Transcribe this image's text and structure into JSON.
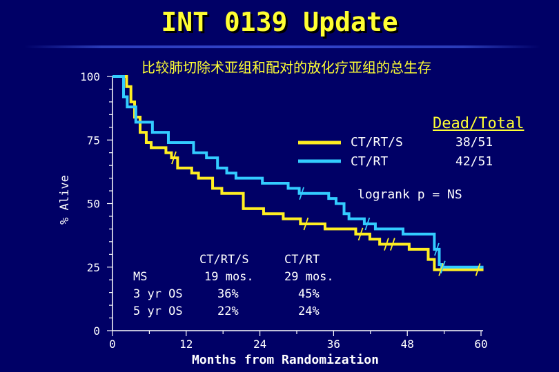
{
  "slide": {
    "title": "INT 0139 Update",
    "subtitle": "比较肺切除术亚组和配对的放化疗亚组的总生存"
  },
  "legend": {
    "header": "Dead/Total",
    "entries": [
      {
        "label": "CT/RT/S",
        "ratio": "38/51",
        "color": "#ffee22"
      },
      {
        "label": "CT/RT",
        "ratio": "42/51",
        "color": "#33ccff"
      }
    ]
  },
  "stats": {
    "logrank": "logrank p = NS",
    "col_headers": [
      "CT/RT/S",
      "CT/RT"
    ],
    "rows": [
      {
        "label": "MS",
        "a": "19 mos.",
        "b": "29 mos."
      },
      {
        "label": "3 yr OS",
        "a": "36%",
        "b": "45%"
      },
      {
        "label": "5 yr OS",
        "a": "22%",
        "b": "24%"
      }
    ]
  },
  "chart_data": {
    "type": "line",
    "step": true,
    "title": "比较肺切除术亚组和配对的放化疗亚组的总生存",
    "xlabel": "Months from Randomization",
    "ylabel": "% Alive",
    "xlim": [
      0,
      60
    ],
    "ylim": [
      0,
      100
    ],
    "xticks": [
      "0",
      "12",
      "24",
      "36",
      "48",
      "60"
    ],
    "yticks": [
      "0",
      "25",
      "50",
      "75",
      "100"
    ],
    "colors": {
      "axis": "#ffffff",
      "background": "#000066"
    },
    "series": [
      {
        "name": "CT/RT/S",
        "color": "#ffee22",
        "x": [
          0,
          2.3,
          3,
          3.6,
          4.5,
          5.5,
          6.3,
          8.7,
          9.6,
          10.6,
          12.9,
          14,
          16.3,
          17.8,
          21.3,
          24.6,
          27.8,
          30.6,
          34.6,
          39.6,
          41.9,
          43.5,
          48.3,
          51.4,
          52.4,
          60.4
        ],
        "y": [
          100,
          96,
          90,
          84,
          78,
          74,
          72,
          70,
          68,
          64,
          62,
          60,
          56,
          54,
          48,
          46,
          44,
          42,
          40,
          38,
          36,
          34,
          32,
          28,
          24,
          24
        ],
        "censor_x": [
          10,
          31.5,
          40.4,
          44.6,
          45.6,
          53.5,
          59.5
        ]
      },
      {
        "name": "CT/RT",
        "color": "#33ccff",
        "x": [
          0,
          1.8,
          2.4,
          3.8,
          6.5,
          9.1,
          13.2,
          15.3,
          17.1,
          18.6,
          20.1,
          24.4,
          28.6,
          30.4,
          35.2,
          36.4,
          37.7,
          38.5,
          41,
          42.8,
          47.3,
          52.4,
          53.2,
          53.6,
          60.4
        ],
        "y": [
          100,
          92,
          88,
          82,
          78,
          74,
          70,
          68,
          64,
          62,
          60,
          58,
          56,
          54,
          52,
          50,
          46,
          44,
          42,
          40,
          38,
          32,
          26,
          25,
          25
        ],
        "censor_x": [
          30.8,
          41.5,
          52.8,
          53.8
        ]
      }
    ]
  }
}
